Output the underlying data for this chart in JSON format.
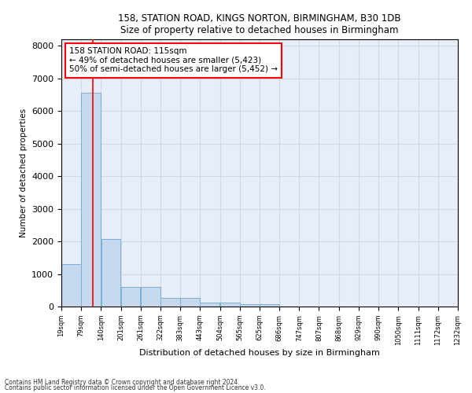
{
  "title": "158, STATION ROAD, KINGS NORTON, BIRMINGHAM, B30 1DB",
  "subtitle": "Size of property relative to detached houses in Birmingham",
  "xlabel": "Distribution of detached houses by size in Birmingham",
  "ylabel": "Number of detached properties",
  "bar_values": [
    1300,
    6550,
    2080,
    600,
    600,
    270,
    270,
    120,
    120,
    80,
    80,
    0,
    0,
    0,
    0,
    0,
    0,
    0,
    0,
    0
  ],
  "bin_edges": [
    19,
    79,
    140,
    201,
    261,
    322,
    383,
    443,
    504,
    565,
    625,
    686,
    747,
    807,
    868,
    929,
    990,
    1050,
    1111,
    1172,
    1232
  ],
  "bar_color": "#c5d8ee",
  "bar_edgecolor": "#7aafd4",
  "grid_color": "#d0d8e8",
  "background_color": "#e8eef8",
  "red_line_x": 115,
  "annotation_title": "158 STATION ROAD: 115sqm",
  "annotation_line1": "← 49% of detached houses are smaller (5,423)",
  "annotation_line2": "50% of semi-detached houses are larger (5,452) →",
  "ylim": [
    0,
    8200
  ],
  "yticks": [
    0,
    1000,
    2000,
    3000,
    4000,
    5000,
    6000,
    7000,
    8000
  ],
  "footnote1": "Contains HM Land Registry data © Crown copyright and database right 2024.",
  "footnote2": "Contains public sector information licensed under the Open Government Licence v3.0."
}
